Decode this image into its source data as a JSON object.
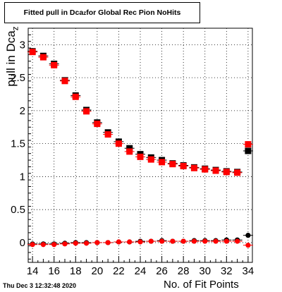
{
  "title": {
    "prefix": "Fitted pull in Dca",
    "subscript": "z",
    "suffix": " for Global Rec Pion NoHits"
  },
  "timestamp": "Thu Dec  3 12:32:48 2020",
  "chart_data": {
    "type": "scatter",
    "xlabel": "No. of Fit Points",
    "ylabel": {
      "text": "pull in Dca",
      "subscript": "z"
    },
    "xlim": [
      13.6,
      34.4
    ],
    "ylim": [
      -0.3,
      3.25
    ],
    "grid": true,
    "x_ticks": [
      14,
      16,
      18,
      20,
      22,
      24,
      26,
      28,
      30,
      32,
      34
    ],
    "y_ticks": [
      0,
      0.5,
      1,
      1.5,
      2,
      2.5,
      3
    ],
    "y_tick_labels": [
      "0",
      "0.5",
      "1",
      "1.5",
      "2",
      "2.5",
      "3"
    ],
    "series": [
      {
        "color": "#000000",
        "marker": "square",
        "x": [
          14,
          15,
          16,
          17,
          18,
          19,
          20,
          21,
          22,
          23,
          24,
          25,
          26,
          27,
          28,
          29,
          30,
          31,
          32,
          33,
          34
        ],
        "y": [
          2.9,
          2.83,
          2.71,
          2.46,
          2.23,
          2.01,
          1.82,
          1.67,
          1.53,
          1.43,
          1.34,
          1.29,
          1.25,
          1.2,
          1.17,
          1.14,
          1.12,
          1.1,
          1.08,
          1.07,
          1.39
        ]
      },
      {
        "color": "#ff0000",
        "marker": "square",
        "x": [
          14,
          15,
          16,
          17,
          18,
          19,
          20,
          21,
          22,
          23,
          24,
          25,
          26,
          27,
          28,
          29,
          30,
          31,
          32,
          33,
          34
        ],
        "y": [
          2.89,
          2.81,
          2.69,
          2.45,
          2.21,
          1.99,
          1.8,
          1.64,
          1.5,
          1.38,
          1.3,
          1.26,
          1.22,
          1.19,
          1.16,
          1.13,
          1.11,
          1.09,
          1.07,
          1.06,
          1.49
        ]
      },
      {
        "color": "#000000",
        "marker": "circle",
        "x": [
          14,
          15,
          16,
          17,
          18,
          19,
          20,
          21,
          22,
          23,
          24,
          25,
          26,
          27,
          28,
          29,
          30,
          31,
          32,
          33,
          34
        ],
        "y": [
          -0.02,
          -0.02,
          -0.02,
          -0.01,
          0.0,
          0.0,
          0.0,
          0.0,
          0.01,
          0.01,
          0.02,
          0.02,
          0.03,
          0.02,
          0.02,
          0.03,
          0.03,
          0.03,
          0.04,
          0.04,
          0.11
        ]
      },
      {
        "color": "#ff0000",
        "marker": "circle",
        "x": [
          14,
          15,
          16,
          17,
          18,
          19,
          20,
          21,
          22,
          23,
          24,
          25,
          26,
          27,
          28,
          29,
          30,
          31,
          32,
          33,
          34
        ],
        "y": [
          -0.03,
          -0.03,
          -0.03,
          -0.02,
          -0.01,
          -0.01,
          0.0,
          0.0,
          0.01,
          0.01,
          0.01,
          0.02,
          0.02,
          0.02,
          0.02,
          0.02,
          0.02,
          0.02,
          0.02,
          0.02,
          -0.04
        ]
      }
    ]
  }
}
